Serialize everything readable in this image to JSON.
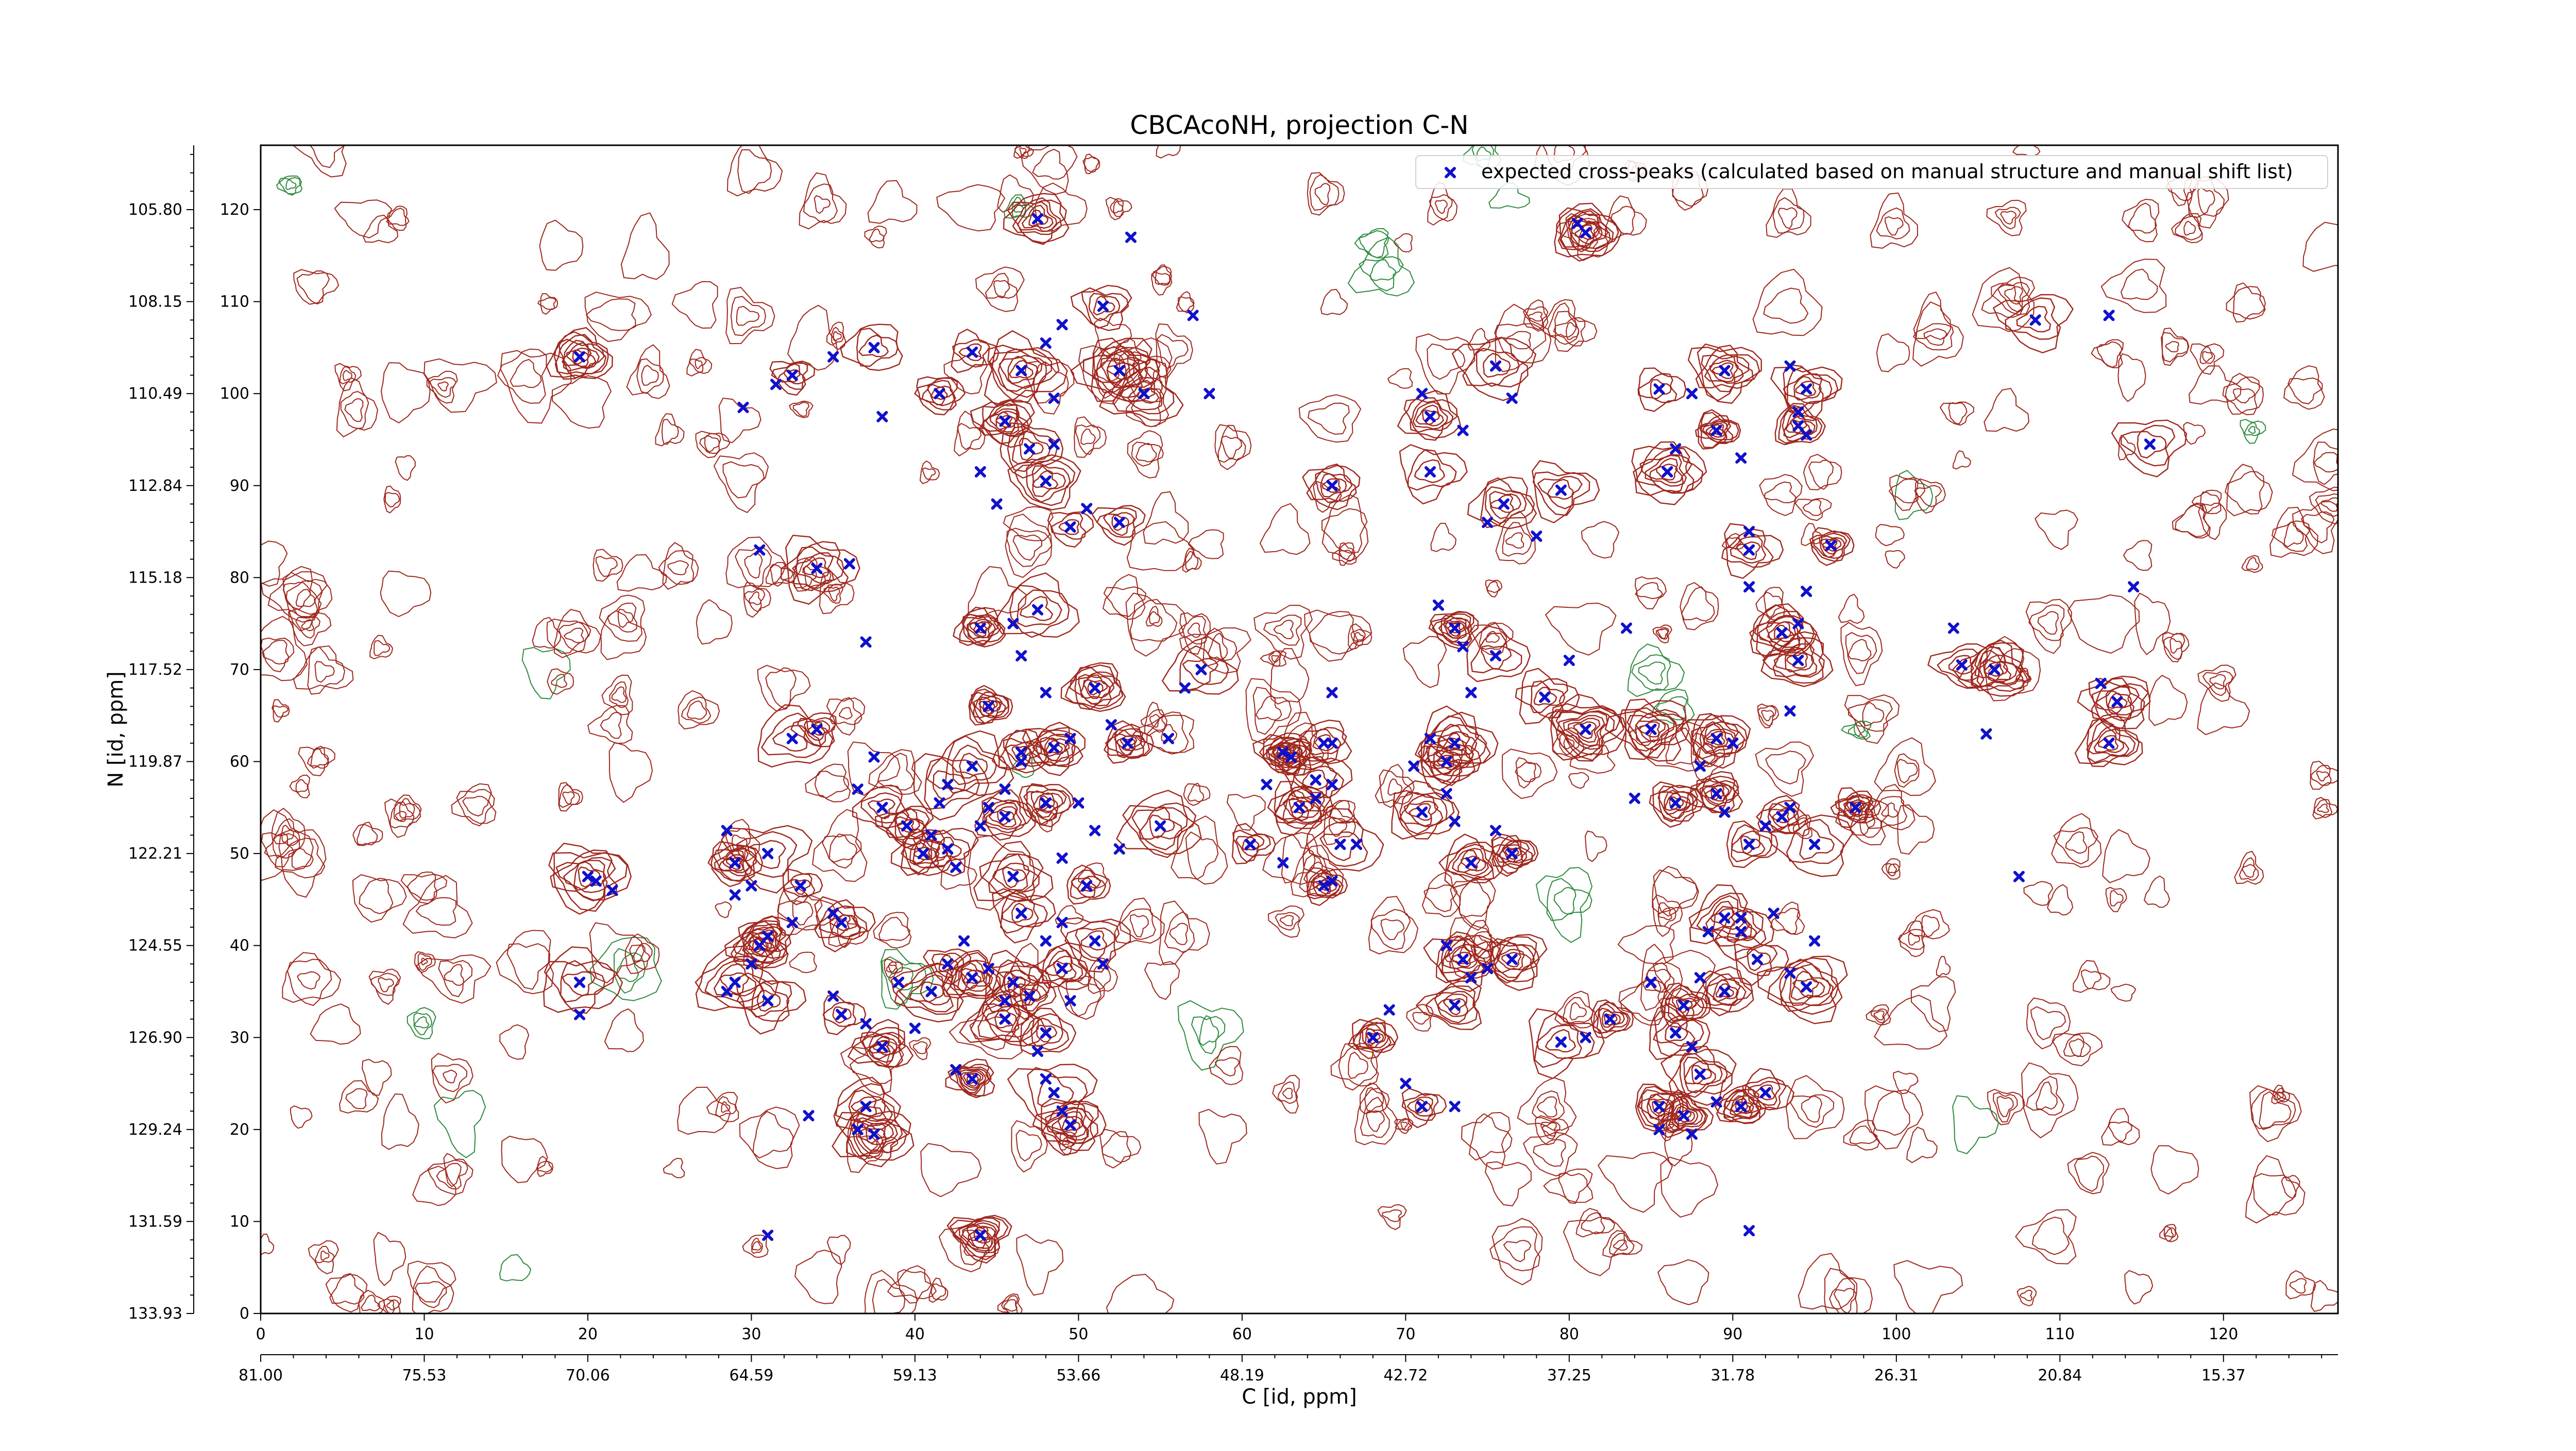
{
  "chart_data": {
    "type": "scatter",
    "title": "CBCAcoNH, projection C-N",
    "xlabel": "C [id, ppm]",
    "ylabel": "N [id, ppm]",
    "xlim": [
      0,
      127
    ],
    "ylim": [
      0,
      127
    ],
    "grid": false,
    "legend_position": "top-right",
    "x_index_ticks": [
      "0",
      "10",
      "20",
      "30",
      "40",
      "50",
      "60",
      "70",
      "80",
      "90",
      "100",
      "110",
      "120"
    ],
    "x_ppm_ticks": [
      "81.00",
      "75.53",
      "70.06",
      "64.59",
      "59.13",
      "53.66",
      "48.19",
      "42.72",
      "37.25",
      "31.78",
      "26.31",
      "20.84",
      "15.37"
    ],
    "y_index_ticks": [
      "0",
      "10",
      "20",
      "30",
      "40",
      "50",
      "60",
      "70",
      "80",
      "90",
      "100",
      "110",
      "120"
    ],
    "y_ppm_ticks": [
      "133.93",
      "131.59",
      "129.24",
      "126.90",
      "124.55",
      "122.21",
      "119.87",
      "117.52",
      "115.18",
      "112.84",
      "110.49",
      "108.15",
      "105.80"
    ],
    "colors": {
      "positive_contour": "#a0281e",
      "negative_contour": "#2e8b3e",
      "marker": "#1010cc"
    },
    "series": [
      {
        "name": "expected cross-peaks (calculated based on manual structure and manual shift list)",
        "marker": "x",
        "points": [
          [
            47.5,
            119.0
          ],
          [
            53.2,
            117.0
          ],
          [
            51.5,
            109.5
          ],
          [
            57.0,
            108.5
          ],
          [
            43.5,
            104.5
          ],
          [
            49.0,
            107.5
          ],
          [
            46.5,
            102.5
          ],
          [
            48.0,
            105.5
          ],
          [
            41.5,
            100.0
          ],
          [
            38.0,
            97.5
          ],
          [
            45.5,
            97.0
          ],
          [
            48.5,
            99.5
          ],
          [
            54.0,
            100.0
          ],
          [
            58.0,
            100.0
          ],
          [
            52.5,
            102.5
          ],
          [
            31.5,
            101.0
          ],
          [
            32.5,
            102.0
          ],
          [
            29.5,
            98.5
          ],
          [
            19.5,
            104.0
          ],
          [
            35.0,
            104.0
          ],
          [
            37.5,
            105.0
          ],
          [
            44.0,
            91.5
          ],
          [
            48.0,
            90.5
          ],
          [
            45.0,
            88.0
          ],
          [
            49.5,
            85.5
          ],
          [
            50.5,
            87.5
          ],
          [
            52.5,
            86.0
          ],
          [
            30.5,
            83.0
          ],
          [
            34.0,
            81.0
          ],
          [
            36.0,
            81.5
          ],
          [
            47.0,
            94.0
          ],
          [
            48.5,
            94.5
          ],
          [
            44.0,
            74.5
          ],
          [
            46.0,
            75.0
          ],
          [
            47.5,
            76.5
          ],
          [
            46.5,
            71.5
          ],
          [
            44.5,
            66.0
          ],
          [
            48.0,
            67.5
          ],
          [
            51.0,
            68.0
          ],
          [
            52.0,
            64.0
          ],
          [
            53.0,
            62.0
          ],
          [
            55.5,
            62.5
          ],
          [
            46.5,
            61.0
          ],
          [
            46.5,
            60.0
          ],
          [
            48.5,
            61.5
          ],
          [
            49.5,
            62.5
          ],
          [
            43.5,
            59.5
          ],
          [
            45.5,
            57.0
          ],
          [
            42.0,
            57.5
          ],
          [
            41.5,
            55.5
          ],
          [
            38.0,
            55.0
          ],
          [
            36.5,
            57.0
          ],
          [
            34.0,
            63.5
          ],
          [
            37.5,
            60.5
          ],
          [
            32.5,
            62.5
          ],
          [
            37.0,
            73.0
          ],
          [
            39.5,
            53.0
          ],
          [
            41.0,
            52.0
          ],
          [
            42.0,
            50.5
          ],
          [
            44.0,
            53.0
          ],
          [
            45.5,
            54.0
          ],
          [
            44.5,
            55.0
          ],
          [
            48.0,
            55.5
          ],
          [
            50.0,
            55.5
          ],
          [
            40.5,
            50.0
          ],
          [
            42.5,
            48.5
          ],
          [
            46.0,
            47.5
          ],
          [
            49.0,
            49.5
          ],
          [
            50.5,
            46.5
          ],
          [
            52.5,
            50.5
          ],
          [
            55.0,
            53.0
          ],
          [
            51.0,
            52.5
          ],
          [
            31.0,
            50.0
          ],
          [
            28.5,
            52.5
          ],
          [
            29.0,
            49.0
          ],
          [
            30.0,
            46.5
          ],
          [
            33.0,
            46.5
          ],
          [
            35.0,
            43.5
          ],
          [
            35.5,
            42.5
          ],
          [
            32.5,
            42.5
          ],
          [
            31.0,
            41.0
          ],
          [
            29.0,
            45.5
          ],
          [
            30.5,
            40.0
          ],
          [
            30.0,
            38.0
          ],
          [
            29.0,
            36.0
          ],
          [
            28.5,
            35.0
          ],
          [
            31.0,
            34.0
          ],
          [
            35.0,
            34.5
          ],
          [
            35.5,
            32.5
          ],
          [
            37.0,
            31.5
          ],
          [
            38.0,
            29.0
          ],
          [
            40.0,
            31.0
          ],
          [
            42.0,
            38.0
          ],
          [
            43.0,
            40.5
          ],
          [
            41.0,
            35.0
          ],
          [
            39.0,
            36.0
          ],
          [
            43.5,
            36.5
          ],
          [
            44.5,
            37.5
          ],
          [
            46.0,
            36.0
          ],
          [
            45.5,
            34.0
          ],
          [
            47.0,
            34.5
          ],
          [
            48.0,
            40.5
          ],
          [
            46.5,
            43.5
          ],
          [
            49.0,
            42.5
          ],
          [
            49.0,
            37.5
          ],
          [
            49.5,
            34.0
          ],
          [
            51.0,
            40.5
          ],
          [
            51.5,
            38.0
          ],
          [
            48.0,
            30.5
          ],
          [
            47.5,
            28.5
          ],
          [
            45.5,
            32.0
          ],
          [
            42.5,
            26.5
          ],
          [
            43.5,
            25.5
          ],
          [
            48.0,
            25.5
          ],
          [
            48.5,
            24.0
          ],
          [
            49.0,
            22.0
          ],
          [
            49.5,
            20.5
          ],
          [
            33.5,
            21.5
          ],
          [
            37.0,
            22.5
          ],
          [
            36.5,
            20.0
          ],
          [
            37.5,
            19.5
          ],
          [
            31.0,
            8.5
          ],
          [
            44.0,
            8.5
          ],
          [
            19.5,
            32.5
          ],
          [
            19.5,
            36.0
          ],
          [
            20.5,
            47.0
          ],
          [
            20.0,
            47.5
          ],
          [
            21.5,
            46.0
          ],
          [
            65.5,
            90.0
          ],
          [
            65.5,
            67.5
          ],
          [
            65.0,
            62.0
          ],
          [
            65.5,
            62.0
          ],
          [
            64.5,
            58.0
          ],
          [
            65.5,
            57.5
          ],
          [
            63.5,
            55.0
          ],
          [
            64.5,
            56.0
          ],
          [
            66.0,
            51.0
          ],
          [
            67.0,
            51.0
          ],
          [
            65.0,
            46.5
          ],
          [
            65.5,
            47.0
          ],
          [
            60.5,
            51.0
          ],
          [
            62.5,
            49.0
          ],
          [
            63.0,
            60.5
          ],
          [
            61.5,
            57.5
          ],
          [
            57.5,
            70.0
          ],
          [
            56.5,
            68.0
          ],
          [
            62.5,
            61.0
          ],
          [
            71.0,
            100.0
          ],
          [
            71.5,
            97.5
          ],
          [
            73.5,
            96.0
          ],
          [
            75.5,
            103.0
          ],
          [
            76.5,
            99.5
          ],
          [
            71.5,
            91.5
          ],
          [
            75.0,
            86.0
          ],
          [
            76.0,
            88.0
          ],
          [
            78.0,
            84.5
          ],
          [
            79.5,
            89.5
          ],
          [
            72.0,
            77.0
          ],
          [
            73.0,
            74.5
          ],
          [
            73.5,
            72.5
          ],
          [
            75.5,
            71.5
          ],
          [
            74.0,
            67.5
          ],
          [
            78.5,
            67.0
          ],
          [
            71.5,
            62.5
          ],
          [
            72.5,
            60.0
          ],
          [
            70.5,
            59.5
          ],
          [
            73.0,
            62.0
          ],
          [
            72.5,
            56.5
          ],
          [
            71.0,
            54.5
          ],
          [
            73.0,
            53.5
          ],
          [
            74.0,
            49.0
          ],
          [
            75.5,
            52.5
          ],
          [
            76.5,
            50.0
          ],
          [
            72.5,
            40.0
          ],
          [
            73.5,
            38.5
          ],
          [
            75.0,
            37.5
          ],
          [
            76.5,
            38.5
          ],
          [
            74.0,
            36.5
          ],
          [
            73.0,
            33.5
          ],
          [
            69.0,
            33.0
          ],
          [
            68.0,
            30.0
          ],
          [
            70.0,
            25.0
          ],
          [
            71.0,
            22.5
          ],
          [
            73.0,
            22.5
          ],
          [
            79.5,
            29.5
          ],
          [
            81.0,
            30.0
          ],
          [
            82.5,
            32.0
          ],
          [
            80.0,
            71.0
          ],
          [
            81.0,
            63.5
          ],
          [
            80.5,
            118.5
          ],
          [
            81.0,
            117.5
          ],
          [
            83.5,
            74.5
          ],
          [
            86.0,
            91.5
          ],
          [
            86.5,
            94.0
          ],
          [
            85.0,
            63.5
          ],
          [
            84.0,
            56.0
          ],
          [
            86.5,
            55.5
          ],
          [
            88.0,
            59.5
          ],
          [
            89.0,
            56.5
          ],
          [
            89.5,
            54.5
          ],
          [
            89.0,
            62.5
          ],
          [
            90.0,
            62.0
          ],
          [
            91.0,
            51.0
          ],
          [
            92.0,
            53.0
          ],
          [
            93.0,
            54.0
          ],
          [
            93.5,
            55.0
          ],
          [
            95.0,
            51.0
          ],
          [
            93.5,
            65.5
          ],
          [
            93.0,
            74.0
          ],
          [
            94.5,
            78.5
          ],
          [
            94.0,
            71.0
          ],
          [
            91.0,
            79.0
          ],
          [
            91.0,
            83.0
          ],
          [
            91.0,
            85.0
          ],
          [
            89.0,
            96.0
          ],
          [
            90.5,
            93.0
          ],
          [
            89.5,
            102.5
          ],
          [
            87.5,
            100.0
          ],
          [
            85.5,
            100.5
          ],
          [
            88.5,
            41.5
          ],
          [
            89.5,
            43.0
          ],
          [
            90.5,
            43.0
          ],
          [
            90.5,
            41.5
          ],
          [
            92.5,
            43.5
          ],
          [
            91.5,
            38.5
          ],
          [
            93.5,
            37.0
          ],
          [
            94.5,
            35.5
          ],
          [
            95.0,
            40.5
          ],
          [
            89.5,
            35.0
          ],
          [
            88.0,
            36.5
          ],
          [
            87.0,
            33.5
          ],
          [
            85.0,
            36.0
          ],
          [
            86.5,
            30.5
          ],
          [
            87.5,
            29.0
          ],
          [
            88.0,
            26.0
          ],
          [
            89.0,
            23.0
          ],
          [
            90.5,
            22.5
          ],
          [
            91.0,
            9.0
          ],
          [
            92.0,
            24.0
          ],
          [
            85.5,
            20.0
          ],
          [
            85.5,
            22.5
          ],
          [
            87.5,
            19.5
          ],
          [
            87.0,
            21.5
          ],
          [
            93.5,
            103.0
          ],
          [
            94.0,
            96.5
          ],
          [
            94.0,
            98.0
          ],
          [
            94.5,
            100.5
          ],
          [
            94.5,
            95.5
          ],
          [
            96.0,
            83.5
          ],
          [
            94.0,
            75.0
          ],
          [
            97.5,
            55.0
          ],
          [
            103.5,
            74.5
          ],
          [
            104.0,
            70.5
          ],
          [
            105.5,
            63.0
          ],
          [
            106.0,
            70.0
          ],
          [
            107.5,
            47.5
          ],
          [
            108.5,
            108.0
          ],
          [
            113.0,
            108.5
          ],
          [
            115.5,
            94.5
          ],
          [
            112.5,
            68.5
          ],
          [
            113.0,
            62.0
          ],
          [
            114.5,
            79.0
          ],
          [
            113.5,
            66.5
          ]
        ]
      }
    ]
  }
}
